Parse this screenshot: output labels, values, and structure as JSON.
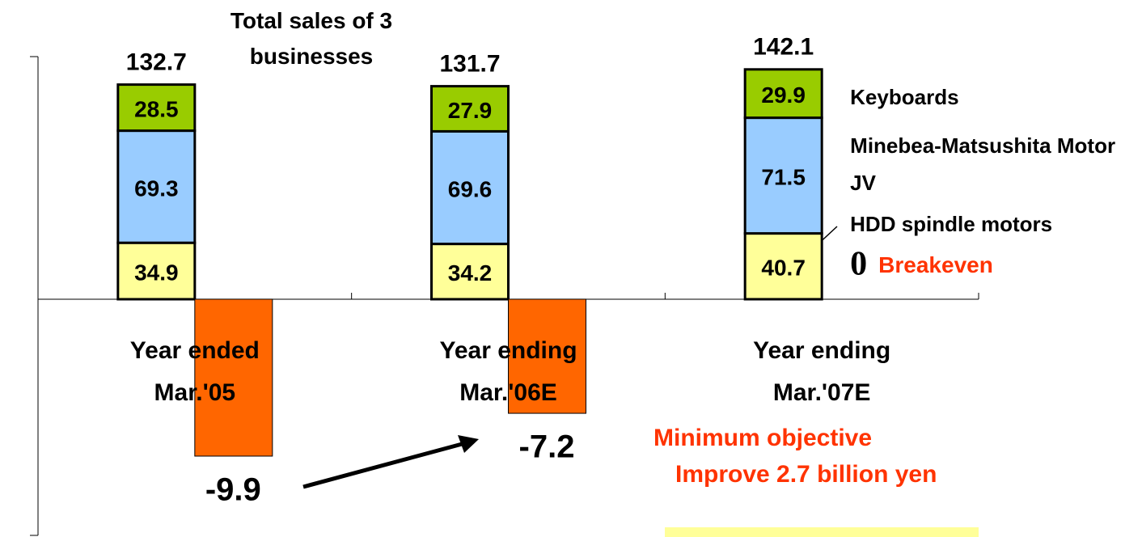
{
  "chart_data": {
    "type": "stacked_bar",
    "title": "Total sales of 3 businesses",
    "categories": [
      "Year ended Mar.'05",
      "Year ending Mar.'06E",
      "Year ending Mar.'07E"
    ],
    "series": [
      {
        "name": "HDD spindle motors",
        "color": "#ffff99",
        "values": [
          34.9,
          34.2,
          40.7
        ]
      },
      {
        "name": "Minebea-Matsushita Motor JV",
        "color": "#99ccff",
        "values": [
          69.3,
          69.6,
          71.5
        ]
      },
      {
        "name": "Keyboards",
        "color": "#99cc00",
        "values": [
          28.5,
          27.9,
          29.9
        ]
      }
    ],
    "totals": [
      132.7,
      131.7,
      142.1
    ],
    "income": {
      "color": "#ff6600",
      "axis": "y2",
      "values": [
        -9.9,
        -7.2,
        0
      ]
    },
    "annotations": [
      "Breakeven",
      "Minimum objective",
      "Improve 2.7 billion yen"
    ],
    "ylim": [
      -146,
      150
    ],
    "yticks": [
      -146,
      150
    ],
    "y2lim": [
      -14.9,
      15.3
    ]
  }
}
